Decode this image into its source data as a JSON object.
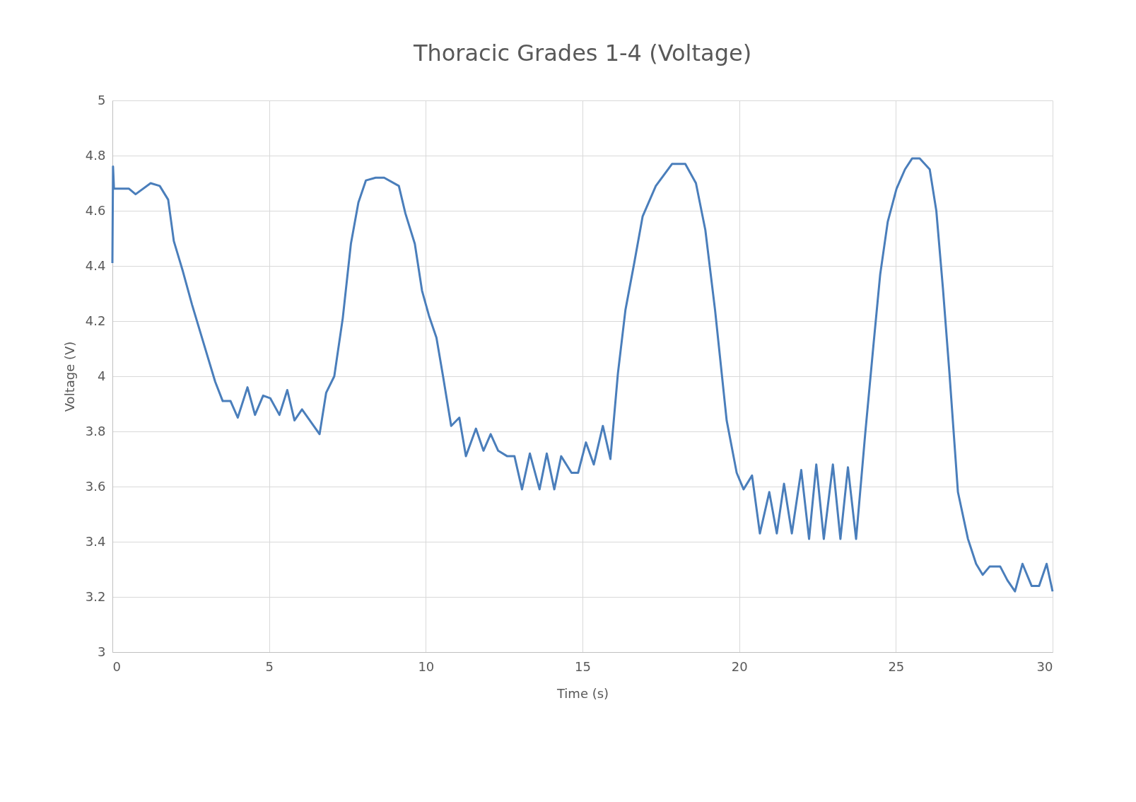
{
  "chart_data": {
    "type": "line",
    "title": "Thoracic Grades 1-4 (Voltage)",
    "xlabel": "Time (s)",
    "ylabel": "Voltage (V)",
    "xlim": [
      0,
      30
    ],
    "xticks": [
      0,
      5,
      10,
      15,
      20,
      25,
      30
    ],
    "ylim": [
      3,
      5
    ],
    "yticks": [
      3,
      {
        "value": 3.2,
        "label": "3.2"
      },
      {
        "value": 3.4,
        "label": "3.4"
      },
      {
        "value": 3.6,
        "label": "3.6"
      },
      {
        "value": 3.8,
        "label": "3.8"
      },
      4,
      {
        "value": 4.2,
        "label": "4.2"
      },
      {
        "value": 4.4,
        "label": "4.4"
      },
      {
        "value": 4.6,
        "label": "4.6"
      },
      {
        "value": 4.8,
        "label": "4.8"
      },
      5
    ],
    "grid": true,
    "legend": false,
    "marker": "none",
    "line_style": "solid",
    "series": [
      {
        "color": "#4a7ebb",
        "x": [
          0,
          0.02,
          0.05,
          0.53,
          0.74,
          1.22,
          1.51,
          1.78,
          1.96,
          2.25,
          2.54,
          3.28,
          3.52,
          3.77,
          4.0,
          4.31,
          4.55,
          4.81,
          5.04,
          5.33,
          5.58,
          5.81,
          6.05,
          6.61,
          6.82,
          7.08,
          7.35,
          7.61,
          7.85,
          8.09,
          8.4,
          8.67,
          9.14,
          9.35,
          9.65,
          9.88,
          10.1,
          10.34,
          10.55,
          10.81,
          11.07,
          11.28,
          11.6,
          11.84,
          12.07,
          12.31,
          12.6,
          12.83,
          13.07,
          13.32,
          13.63,
          13.86,
          14.1,
          14.32,
          14.65,
          14.86,
          15.11,
          15.36,
          15.65,
          15.89,
          16.13,
          16.37,
          16.65,
          16.92,
          17.34,
          17.86,
          18.28,
          18.62,
          18.92,
          19.23,
          19.6,
          19.92,
          20.14,
          20.41,
          20.66,
          20.96,
          21.2,
          21.43,
          21.68,
          21.98,
          22.23,
          22.46,
          22.7,
          22.99,
          23.23,
          23.47,
          23.73,
          24.02,
          24.29,
          24.5,
          24.74,
          25.02,
          25.29,
          25.52,
          25.76,
          26.08,
          26.29,
          26.5,
          26.71,
          26.98,
          27.3,
          27.56,
          27.77,
          27.99,
          28.33,
          28.56,
          28.8,
          29.04,
          29.33,
          29.57,
          29.81,
          30.0
        ],
        "values": [
          4.41,
          4.76,
          4.68,
          4.68,
          4.66,
          4.7,
          4.69,
          4.64,
          4.49,
          4.38,
          4.26,
          3.98,
          3.91,
          3.91,
          3.85,
          3.96,
          3.86,
          3.93,
          3.92,
          3.86,
          3.95,
          3.84,
          3.88,
          3.79,
          3.94,
          4.0,
          4.21,
          4.48,
          4.63,
          4.71,
          4.72,
          4.72,
          4.69,
          4.59,
          4.48,
          4.31,
          4.22,
          4.14,
          4.0,
          3.82,
          3.85,
          3.71,
          3.81,
          3.73,
          3.79,
          3.73,
          3.71,
          3.71,
          3.59,
          3.72,
          3.59,
          3.72,
          3.59,
          3.71,
          3.65,
          3.65,
          3.76,
          3.68,
          3.82,
          3.7,
          4.01,
          4.24,
          4.41,
          4.58,
          4.69,
          4.77,
          4.77,
          4.7,
          4.53,
          4.24,
          3.84,
          3.65,
          3.59,
          3.64,
          3.43,
          3.58,
          3.43,
          3.61,
          3.43,
          3.66,
          3.41,
          3.68,
          3.41,
          3.68,
          3.41,
          3.67,
          3.41,
          3.79,
          4.12,
          4.37,
          4.56,
          4.68,
          4.75,
          4.79,
          4.79,
          4.75,
          4.6,
          4.32,
          4.01,
          3.58,
          3.41,
          3.32,
          3.28,
          3.31,
          3.31,
          3.26,
          3.22,
          3.32,
          3.24,
          3.24,
          3.32,
          3.22
        ]
      }
    ]
  }
}
